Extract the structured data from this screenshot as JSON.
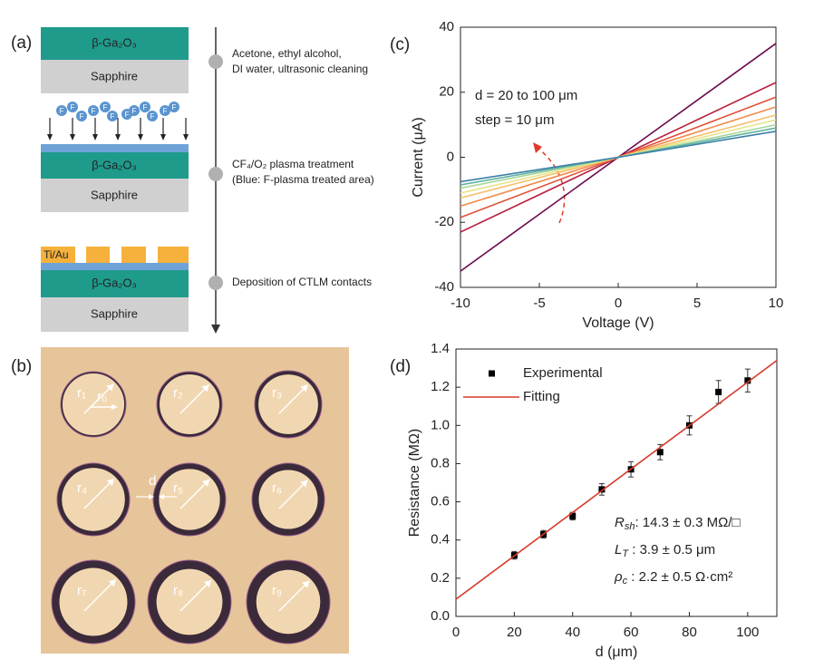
{
  "panel_labels": [
    "(a)",
    "(b)",
    "(c)",
    "(d)"
  ],
  "process": {
    "layers": {
      "ga2o3": "β-Ga₂O₃",
      "sapphire": "Sapphire",
      "metal": "Ti/Au",
      "fluorine": "F"
    },
    "steps": [
      [
        "Acetone, ethyl alcohol,",
        "DI water, ultrasonic cleaning"
      ],
      [
        "CF₄/O₂ plasma treatment",
        "(Blue: F-plasma treated area)"
      ],
      [
        "Deposition of CTLM contacts"
      ]
    ]
  },
  "micrograph": {
    "radii": [
      "r₁",
      "r₂",
      "r₃",
      "r₄",
      "r₅",
      "r₆",
      "r₇",
      "r₈",
      "r₉"
    ],
    "inner": "r₀",
    "gap": "d"
  },
  "chart_data": [
    {
      "type": "line",
      "xlabel": "Voltage (V)",
      "ylabel": "Current (μA)",
      "annotations": [
        "d = 20 to 100 μm",
        "step = 10 μm"
      ],
      "x": [
        -10,
        0,
        10
      ],
      "series": [
        {
          "color": "#6b0a4e",
          "values": [
            -35,
            0,
            35
          ]
        },
        {
          "color": "#b8203f",
          "values": [
            -23,
            0,
            23
          ]
        },
        {
          "color": "#e0513a",
          "values": [
            -18.5,
            0,
            18.5
          ]
        },
        {
          "color": "#f08a4b",
          "values": [
            -15,
            0,
            15.5
          ]
        },
        {
          "color": "#f7c06a",
          "values": [
            -12.5,
            0,
            13
          ]
        },
        {
          "color": "#e8e38a",
          "values": [
            -11,
            0,
            11.5
          ]
        },
        {
          "color": "#a6d69a",
          "values": [
            -9.5,
            0,
            10
          ]
        },
        {
          "color": "#5fb2a0",
          "values": [
            -8.5,
            0,
            9
          ]
        },
        {
          "color": "#3a7fa8",
          "values": [
            -7.5,
            0,
            8
          ]
        }
      ],
      "xlim": [
        -10,
        10
      ],
      "xticks": [
        -10,
        -5,
        0,
        5,
        10
      ],
      "ylim": [
        -40,
        40
      ],
      "yticks": [
        -40,
        -20,
        0,
        20,
        40
      ]
    },
    {
      "type": "scatter",
      "xlabel": "d (μm)",
      "ylabel": "Resistance (MΩ)",
      "legend": "upper left",
      "series": [
        {
          "name": "Experimental",
          "mode": "markers",
          "color": "#000000",
          "x": [
            20,
            30,
            40,
            50,
            60,
            70,
            80,
            90,
            100
          ],
          "values": [
            0.32,
            0.43,
            0.525,
            0.665,
            0.77,
            0.86,
            1.0,
            1.175,
            1.235
          ],
          "errors": [
            0.02,
            0.02,
            0.02,
            0.03,
            0.04,
            0.04,
            0.05,
            0.06,
            0.06
          ]
        },
        {
          "name": "Fitting",
          "mode": "line",
          "color": "#d63a2a",
          "x": [
            0,
            110
          ],
          "values": [
            0.09,
            1.34
          ]
        }
      ],
      "annotations": [
        {
          "symbol": "R",
          "sub": "sh",
          "text": ": 14.3 ± 0.3 MΩ/□"
        },
        {
          "symbol": "L",
          "sub": "T",
          "text": " : 3.9 ± 0.5  μm"
        },
        {
          "symbol": "ρ",
          "sub": "c",
          "text": " : 2.2 ± 0.5 Ω·cm²"
        }
      ],
      "xlim": [
        0,
        110
      ],
      "xticks": [
        0,
        20,
        40,
        60,
        80,
        100
      ],
      "ylim": [
        0,
        1.4
      ],
      "yticks": [
        {
          "value": 0,
          "label": "0.0"
        },
        0.2,
        0.4,
        0.6,
        0.8,
        {
          "value": 1,
          "label": "1.0"
        },
        1.2,
        1.4
      ]
    }
  ]
}
